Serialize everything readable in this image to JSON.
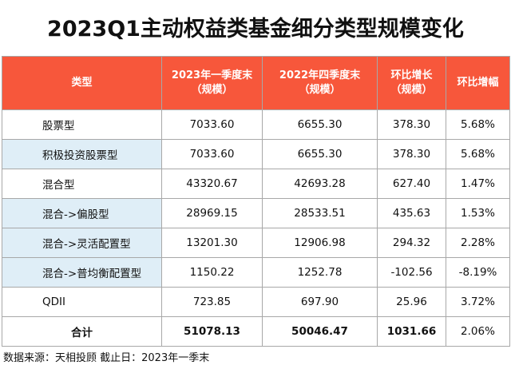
{
  "title": "2023Q1主动权益类基金细分类型规模变化",
  "headers": [
    {
      "line1": "类型",
      "line2": ""
    },
    {
      "line1": "2023年一季度末",
      "line2": "（规模）"
    },
    {
      "line1": "2022年四季度末",
      "line2": "（规模）"
    },
    {
      "line1": "环比增长",
      "line2": "（规模）"
    },
    {
      "line1": "环比增幅",
      "line2": ""
    }
  ],
  "rows": [
    {
      "type": "股票型",
      "q1_2023": "7033.60",
      "q4_2022": "6655.30",
      "change": "378.30",
      "pct": "5.68%"
    },
    {
      "type": "积极投资股票型",
      "q1_2023": "7033.60",
      "q4_2022": "6655.30",
      "change": "378.30",
      "pct": "5.68%"
    },
    {
      "type": "混合型",
      "q1_2023": "43320.67",
      "q4_2022": "42693.28",
      "change": "627.40",
      "pct": "1.47%"
    },
    {
      "type": "混合->偏股型",
      "q1_2023": "28969.15",
      "q4_2022": "28533.51",
      "change": "435.63",
      "pct": "1.53%"
    },
    {
      "type": "混合->灵活配置型",
      "q1_2023": "13201.30",
      "q4_2022": "12906.98",
      "change": "294.32",
      "pct": "2.28%"
    },
    {
      "type": "混合->普均衡配置型",
      "q1_2023": "1150.22",
      "q4_2022": "1252.78",
      "change": "-102.56",
      "pct": "-8.19%"
    },
    {
      "type": "QDII",
      "q1_2023": "723.85",
      "q4_2022": "697.90",
      "change": "25.96",
      "pct": "3.72%"
    }
  ],
  "total": {
    "type": "合计",
    "q1_2023": "51078.13",
    "q4_2022": "50046.47",
    "change": "1031.66",
    "pct": "2.06%"
  },
  "source": "数据来源：天相投顾  截止日：2023年一季末",
  "colors": {
    "header_bg": "#f7573b",
    "shade_bg": "#dfeef7",
    "highlight_text": "#e8231f"
  }
}
